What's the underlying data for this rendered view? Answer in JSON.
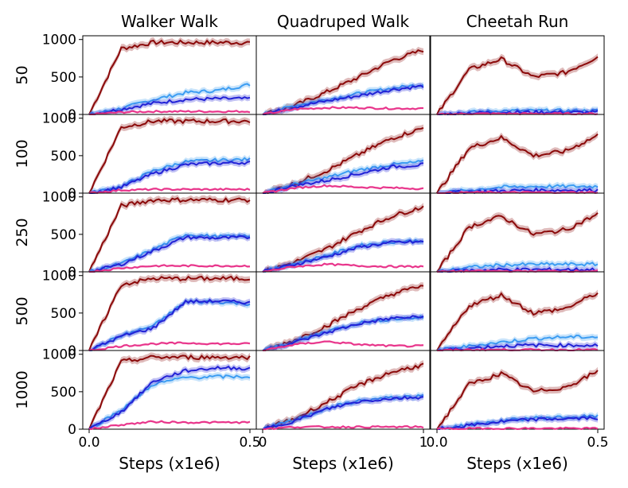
{
  "chart_data": {
    "type": "line",
    "title": "",
    "columns": [
      {
        "title": "Walker Walk",
        "xlim": [
          0,
          0.5
        ],
        "xticks": [
          "0.0",
          "0.5"
        ],
        "xlabel": "Steps (x1e6)"
      },
      {
        "title": "Quadruped Walk",
        "xlim": [
          0,
          1
        ],
        "xticks": [
          "0",
          "1"
        ],
        "xlabel": "Steps (x1e6)"
      },
      {
        "title": "Cheetah Run",
        "xlim": [
          0,
          0.5
        ],
        "xticks": [
          "0.0",
          "0.5"
        ],
        "xlabel": "Steps (x1e6)"
      }
    ],
    "rows": [
      "50",
      "100",
      "250",
      "500",
      "1000"
    ],
    "ylim": [
      0,
      1050
    ],
    "yticks": [
      "0",
      "500",
      "1000"
    ],
    "colors": {
      "dark_red": "#8b0a0a",
      "light_blue": "#3d9df2",
      "dark_blue": "#2222d6",
      "pink": "#e8338a"
    },
    "series_names": [
      "dark_red",
      "light_blue",
      "dark_blue",
      "pink"
    ],
    "panels": [
      [
        {
          "dark_red": [
            0,
            880,
            960,
            960,
            960,
            960
          ],
          "light_blue": [
            0,
            80,
            200,
            290,
            320,
            400
          ],
          "dark_blue": [
            0,
            70,
            150,
            200,
            210,
            210
          ],
          "pink": [
            0,
            30,
            40,
            40,
            40,
            40
          ]
        },
        {
          "dark_red": [
            0,
            120,
            300,
            500,
            720,
            860
          ],
          "light_blue": [
            0,
            120,
            200,
            280,
            350,
            400
          ],
          "dark_blue": [
            0,
            100,
            180,
            250,
            330,
            380
          ],
          "pink": [
            0,
            70,
            90,
            90,
            80,
            80
          ]
        },
        {
          "dark_red": [
            0,
            600,
            740,
            500,
            560,
            770
          ],
          "light_blue": [
            0,
            30,
            50,
            50,
            50,
            50
          ],
          "dark_blue": [
            0,
            20,
            30,
            30,
            30,
            30
          ],
          "pink": [
            0,
            10,
            10,
            10,
            10,
            10
          ]
        }
      ],
      [
        {
          "dark_red": [
            0,
            880,
            960,
            960,
            960,
            960
          ],
          "light_blue": [
            0,
            90,
            300,
            420,
            440,
            450
          ],
          "dark_blue": [
            0,
            80,
            260,
            380,
            400,
            410
          ],
          "pink": [
            0,
            40,
            50,
            50,
            50,
            50
          ]
        },
        {
          "dark_red": [
            0,
            130,
            300,
            520,
            730,
            870
          ],
          "light_blue": [
            0,
            120,
            210,
            310,
            380,
            420
          ],
          "dark_blue": [
            0,
            100,
            170,
            260,
            350,
            380
          ],
          "pink": [
            0,
            70,
            100,
            80,
            70,
            60
          ]
        },
        {
          "dark_red": [
            0,
            600,
            740,
            500,
            560,
            770
          ],
          "light_blue": [
            0,
            40,
            80,
            90,
            90,
            90
          ],
          "dark_blue": [
            0,
            20,
            30,
            40,
            40,
            40
          ],
          "pink": [
            0,
            10,
            10,
            10,
            10,
            10
          ]
        }
      ],
      [
        {
          "dark_red": [
            0,
            880,
            960,
            960,
            960,
            960
          ],
          "light_blue": [
            0,
            110,
            300,
            500,
            470,
            480
          ],
          "dark_blue": [
            0,
            100,
            280,
            460,
            450,
            460
          ],
          "pink": [
            0,
            50,
            80,
            80,
            80,
            80
          ]
        },
        {
          "dark_red": [
            0,
            130,
            310,
            540,
            740,
            870
          ],
          "light_blue": [
            0,
            110,
            220,
            350,
            400,
            420
          ],
          "dark_blue": [
            0,
            100,
            200,
            330,
            390,
            400
          ],
          "pink": [
            0,
            70,
            100,
            80,
            70,
            70
          ]
        },
        {
          "dark_red": [
            0,
            600,
            740,
            500,
            560,
            770
          ],
          "light_blue": [
            0,
            60,
            90,
            100,
            100,
            100
          ],
          "dark_blue": [
            0,
            20,
            30,
            30,
            30,
            30
          ],
          "pink": [
            0,
            10,
            10,
            10,
            10,
            10
          ]
        }
      ],
      [
        {
          "dark_red": [
            0,
            880,
            960,
            960,
            960,
            960
          ],
          "light_blue": [
            0,
            200,
            330,
            650,
            650,
            620
          ],
          "dark_blue": [
            0,
            190,
            300,
            650,
            660,
            640
          ],
          "pink": [
            0,
            60,
            90,
            100,
            90,
            90
          ]
        },
        {
          "dark_red": [
            0,
            140,
            330,
            560,
            750,
            870
          ],
          "light_blue": [
            0,
            120,
            260,
            370,
            420,
            440
          ],
          "dark_blue": [
            0,
            110,
            240,
            360,
            430,
            450
          ],
          "pink": [
            0,
            80,
            120,
            80,
            60,
            60
          ]
        },
        {
          "dark_red": [
            0,
            600,
            740,
            500,
            560,
            770
          ],
          "light_blue": [
            0,
            60,
            110,
            160,
            180,
            180
          ],
          "dark_blue": [
            0,
            30,
            60,
            70,
            70,
            70
          ],
          "pink": [
            0,
            10,
            10,
            10,
            10,
            10
          ]
        }
      ],
      [
        {
          "dark_red": [
            0,
            900,
            960,
            960,
            960,
            960
          ],
          "light_blue": [
            0,
            260,
            600,
            690,
            700,
            700
          ],
          "dark_blue": [
            0,
            230,
            640,
            780,
            820,
            810
          ],
          "pink": [
            0,
            60,
            100,
            90,
            90,
            90
          ]
        },
        {
          "dark_red": [
            0,
            140,
            360,
            590,
            760,
            860
          ],
          "light_blue": [
            0,
            120,
            280,
            380,
            420,
            440
          ],
          "dark_blue": [
            0,
            110,
            270,
            370,
            410,
            430
          ],
          "pink": [
            0,
            30,
            30,
            30,
            30,
            30
          ]
        },
        {
          "dark_red": [
            0,
            600,
            740,
            500,
            560,
            770
          ],
          "light_blue": [
            0,
            60,
            110,
            150,
            160,
            170
          ],
          "dark_blue": [
            0,
            50,
            100,
            130,
            140,
            150
          ],
          "pink": [
            0,
            10,
            10,
            10,
            10,
            10
          ]
        }
      ]
    ]
  }
}
